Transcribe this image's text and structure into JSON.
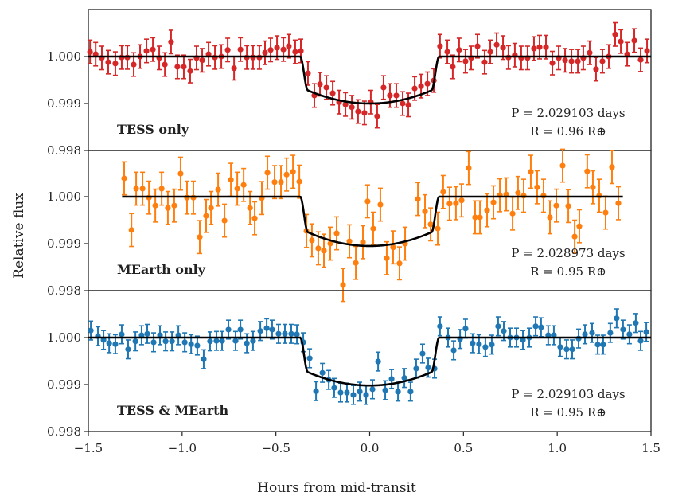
{
  "chart_data": {
    "type": "scatter",
    "title": "",
    "xlabel": "Hours from mid-transit",
    "ylabel": "Relative flux",
    "xlim": [
      -1.5,
      1.5
    ],
    "x_ticks": [
      "-1.5",
      "-1.0",
      "-0.5",
      "0.0",
      "0.5",
      "1.0",
      "1.5"
    ],
    "x_tick_values": [
      -1.5,
      -1.0,
      -0.5,
      0.0,
      0.5,
      1.0,
      1.5
    ],
    "grid": false,
    "panels": [
      {
        "label": "TESS only",
        "color": "#d62728",
        "ylim": [
          0.998,
          1.001
        ],
        "y_ticks": [
          "1.000",
          "0.999",
          "0.998"
        ],
        "y_tick_values": [
          1.0,
          0.999,
          0.998
        ],
        "annotation_period": "P = 2.029103 days",
        "annotation_radius": "R = 0.96 R⊕",
        "period_days": 2.029103,
        "radius_earth": 0.96,
        "error": 0.00025,
        "model": {
          "depth": 0.001,
          "t_contact_outer": 0.37,
          "t_contact_inner": 0.33,
          "x_range": [
            -1.5,
            1.5
          ]
        },
        "points": [
          [
            -1.491,
            1.0001
          ],
          [
            -1.461,
            1.00005
          ],
          [
            -1.428,
            0.99997
          ],
          [
            -1.394,
            0.99988
          ],
          [
            -1.356,
            0.99985
          ],
          [
            -1.322,
            0.99998
          ],
          [
            -1.292,
            0.99998
          ],
          [
            -1.258,
            0.99983
          ],
          [
            -1.224,
            1.0
          ],
          [
            -1.19,
            1.00012
          ],
          [
            -1.156,
            1.00015
          ],
          [
            -1.122,
            0.99997
          ],
          [
            -1.092,
            0.99983
          ],
          [
            -1.059,
            1.00031
          ],
          [
            -1.025,
            0.99978
          ],
          [
            -0.991,
            0.99978
          ],
          [
            -0.957,
            0.99969
          ],
          [
            -0.923,
            0.99997
          ],
          [
            -0.893,
            0.99992
          ],
          [
            -0.859,
            1.00005
          ],
          [
            -0.825,
            0.99998
          ],
          [
            -0.791,
            1.0
          ],
          [
            -0.757,
            1.00014
          ],
          [
            -0.723,
            0.99975
          ],
          [
            -0.689,
            1.00015
          ],
          [
            -0.655,
            0.99998
          ],
          [
            -0.622,
            0.99998
          ],
          [
            -0.588,
            0.99998
          ],
          [
            -0.558,
            1.00008
          ],
          [
            -0.528,
            1.00014
          ],
          [
            -0.494,
            1.00019
          ],
          [
            -0.46,
            1.00015
          ],
          [
            -0.431,
            1.00022
          ],
          [
            -0.397,
            1.0001
          ],
          [
            -0.367,
            1.00012
          ],
          [
            -0.329,
            0.99964
          ],
          [
            -0.295,
            0.99917
          ],
          [
            -0.265,
            0.99941
          ],
          [
            -0.231,
            0.99934
          ],
          [
            -0.197,
            0.99922
          ],
          [
            -0.163,
            0.99903
          ],
          [
            -0.129,
            0.99898
          ],
          [
            -0.095,
            0.99892
          ],
          [
            -0.062,
            0.99883
          ],
          [
            -0.028,
            0.9988
          ],
          [
            0.006,
            0.99903
          ],
          [
            0.04,
            0.99873
          ],
          [
            0.074,
            0.99934
          ],
          [
            0.108,
            0.99917
          ],
          [
            0.142,
            0.99917
          ],
          [
            0.176,
            0.999
          ],
          [
            0.206,
            0.99897
          ],
          [
            0.24,
            0.99932
          ],
          [
            0.274,
            0.99937
          ],
          [
            0.308,
            0.99942
          ],
          [
            0.342,
            0.99949
          ],
          [
            0.375,
            1.00022
          ],
          [
            0.414,
            1.0001
          ],
          [
            0.443,
            0.99978
          ],
          [
            0.477,
            1.00014
          ],
          [
            0.511,
            0.9999
          ],
          [
            0.541,
            0.99997
          ],
          [
            0.575,
            1.00022
          ],
          [
            0.613,
            0.99988
          ],
          [
            0.643,
            1.0001
          ],
          [
            0.677,
            1.00025
          ],
          [
            0.711,
            1.00019
          ],
          [
            0.74,
            0.99998
          ],
          [
            0.774,
            1.00003
          ],
          [
            0.808,
            0.99997
          ],
          [
            0.842,
            0.99997
          ],
          [
            0.876,
            1.00017
          ],
          [
            0.906,
            1.0002
          ],
          [
            0.94,
            1.0002
          ],
          [
            0.974,
            0.99986
          ],
          [
            1.008,
            0.99997
          ],
          [
            1.042,
            0.99992
          ],
          [
            1.076,
            0.9999
          ],
          [
            1.11,
            0.9999
          ],
          [
            1.139,
            0.99997
          ],
          [
            1.173,
            1.00008
          ],
          [
            1.207,
            0.99973
          ],
          [
            1.241,
            0.9999
          ],
          [
            1.275,
            1.0
          ],
          [
            1.309,
            1.00047
          ],
          [
            1.339,
            1.00032
          ],
          [
            1.373,
            1.00005
          ],
          [
            1.411,
            1.00034
          ],
          [
            1.445,
            0.99993
          ],
          [
            1.479,
            1.00012
          ]
        ]
      },
      {
        "label": "MEarth only",
        "color": "#ff7f0e",
        "ylim": [
          0.998,
          1.001
        ],
        "y_ticks": [
          "1.000",
          "0.999",
          "0.998"
        ],
        "y_tick_values": [
          1.0,
          0.999,
          0.998
        ],
        "annotation_period": "P = 2.028973 days",
        "annotation_radius": "R = 0.95 R⊕",
        "period_days": 2.028973,
        "radius_earth": 0.95,
        "error": 0.00035,
        "model": {
          "depth": 0.00105,
          "t_contact_outer": 0.37,
          "t_contact_inner": 0.33,
          "x_range": [
            -1.32,
            1.35
          ]
        },
        "points": [
          [
            -1.309,
            1.00039
          ],
          [
            -1.27,
            0.99929
          ],
          [
            -1.245,
            1.00017
          ],
          [
            -1.211,
            1.00017
          ],
          [
            -1.177,
            0.99998
          ],
          [
            -1.143,
            0.99981
          ],
          [
            -1.109,
            1.00017
          ],
          [
            -1.076,
            0.99976
          ],
          [
            -1.042,
            0.99981
          ],
          [
            -1.008,
            1.00049
          ],
          [
            -0.974,
            0.99998
          ],
          [
            -0.94,
            0.99998
          ],
          [
            -0.906,
            0.99914
          ],
          [
            -0.872,
            0.99959
          ],
          [
            -0.846,
            0.99976
          ],
          [
            -0.808,
            1.00015
          ],
          [
            -0.774,
            0.99949
          ],
          [
            -0.74,
            1.00036
          ],
          [
            -0.706,
            1.00017
          ],
          [
            -0.672,
            1.00025
          ],
          [
            -0.638,
            0.99976
          ],
          [
            -0.613,
            0.99954
          ],
          [
            -0.575,
            0.99997
          ],
          [
            -0.545,
            1.00051
          ],
          [
            -0.507,
            1.00031
          ],
          [
            -0.473,
            1.00031
          ],
          [
            -0.443,
            1.00047
          ],
          [
            -0.409,
            1.00053
          ],
          [
            -0.375,
            1.00032
          ],
          [
            -0.337,
            0.99927
          ],
          [
            -0.308,
            0.99907
          ],
          [
            -0.274,
            0.9989
          ],
          [
            -0.244,
            0.99885
          ],
          [
            -0.21,
            0.999
          ],
          [
            -0.176,
            0.99922
          ],
          [
            -0.142,
            0.99812
          ],
          [
            -0.108,
            0.99905
          ],
          [
            -0.074,
            0.99859
          ],
          [
            -0.036,
            0.99903
          ],
          [
            -0.011,
            0.9999
          ],
          [
            0.019,
            0.99932
          ],
          [
            0.057,
            0.99983
          ],
          [
            0.091,
            0.99869
          ],
          [
            0.125,
            0.99892
          ],
          [
            0.159,
            0.99858
          ],
          [
            0.189,
            0.999
          ],
          [
            0.257,
            0.99995
          ],
          [
            0.295,
            0.99969
          ],
          [
            0.325,
            0.99941
          ],
          [
            0.363,
            0.99932
          ],
          [
            0.392,
            1.0001
          ],
          [
            0.426,
            0.99985
          ],
          [
            0.46,
            0.99986
          ],
          [
            0.49,
            0.99992
          ],
          [
            0.528,
            1.00061
          ],
          [
            0.562,
            0.99956
          ],
          [
            0.588,
            0.99956
          ],
          [
            0.626,
            0.99971
          ],
          [
            0.66,
            0.99988
          ],
          [
            0.694,
            1.00003
          ],
          [
            0.728,
            1.00005
          ],
          [
            0.762,
            0.99964
          ],
          [
            0.791,
            1.00008
          ],
          [
            0.821,
            1.00002
          ],
          [
            0.859,
            1.00053
          ],
          [
            0.893,
            1.0002
          ],
          [
            0.927,
            1.00002
          ],
          [
            0.961,
            0.99956
          ],
          [
            0.995,
            0.99981
          ],
          [
            1.029,
            1.00066
          ],
          [
            1.059,
            0.9998
          ],
          [
            1.093,
            0.99915
          ],
          [
            1.118,
            0.99937
          ],
          [
            1.16,
            1.00054
          ],
          [
            1.19,
            1.0002
          ],
          [
            1.224,
            1.00002
          ],
          [
            1.258,
            0.99966
          ],
          [
            1.292,
            1.00063
          ],
          [
            1.326,
            0.99986
          ]
        ]
      },
      {
        "label": "TESS & MEarth",
        "color": "#1f77b4",
        "ylim": [
          0.998,
          1.001
        ],
        "y_ticks": [
          "1.000",
          "0.999",
          "0.998"
        ],
        "y_tick_values": [
          1.0,
          0.999,
          0.998
        ],
        "annotation_period": "P = 2.029103 days",
        "annotation_radius": "R = 0.95 R⊕",
        "period_days": 2.029103,
        "radius_earth": 0.95,
        "error": 0.0002,
        "model": {
          "depth": 0.00102,
          "t_contact_outer": 0.37,
          "t_contact_inner": 0.33,
          "x_range": [
            -1.5,
            1.5
          ]
        },
        "points": [
          [
            -1.487,
            1.00015
          ],
          [
            -1.449,
            1.00003
          ],
          [
            -1.419,
            0.99995
          ],
          [
            -1.389,
            0.99988
          ],
          [
            -1.356,
            0.99986
          ],
          [
            -1.322,
            1.00007
          ],
          [
            -1.288,
            0.99975
          ],
          [
            -1.249,
            0.99992
          ],
          [
            -1.216,
            1.00005
          ],
          [
            -1.186,
            1.00008
          ],
          [
            -1.152,
            0.9999
          ],
          [
            -1.118,
            1.00005
          ],
          [
            -1.088,
            0.99992
          ],
          [
            -1.054,
            0.99992
          ],
          [
            -1.02,
            1.00005
          ],
          [
            -0.986,
            0.9999
          ],
          [
            -0.952,
            0.99986
          ],
          [
            -0.919,
            0.99983
          ],
          [
            -0.885,
            0.99954
          ],
          [
            -0.851,
            0.99992
          ],
          [
            -0.817,
            0.99993
          ],
          [
            -0.787,
            0.99993
          ],
          [
            -0.753,
            1.00017
          ],
          [
            -0.715,
            0.99993
          ],
          [
            -0.689,
            1.00017
          ],
          [
            -0.655,
            0.99988
          ],
          [
            -0.622,
            0.99993
          ],
          [
            -0.583,
            1.00014
          ],
          [
            -0.549,
            1.0002
          ],
          [
            -0.52,
            1.00017
          ],
          [
            -0.486,
            1.00008
          ],
          [
            -0.452,
            1.00008
          ],
          [
            -0.418,
            1.00008
          ],
          [
            -0.388,
            1.00007
          ],
          [
            -0.354,
            0.9999
          ],
          [
            -0.32,
            0.99956
          ],
          [
            -0.286,
            0.99886
          ],
          [
            -0.252,
            0.99925
          ],
          [
            -0.218,
            0.9991
          ],
          [
            -0.189,
            0.99893
          ],
          [
            -0.155,
            0.99883
          ],
          [
            -0.121,
            0.99883
          ],
          [
            -0.087,
            0.99878
          ],
          [
            -0.053,
            0.99885
          ],
          [
            -0.019,
            0.99878
          ],
          [
            0.015,
            0.9989
          ],
          [
            0.045,
            0.99949
          ],
          [
            0.083,
            0.99888
          ],
          [
            0.117,
            0.99912
          ],
          [
            0.151,
            0.99885
          ],
          [
            0.185,
            0.99914
          ],
          [
            0.218,
            0.99885
          ],
          [
            0.248,
            0.99934
          ],
          [
            0.282,
            0.99966
          ],
          [
            0.312,
            0.99936
          ],
          [
            0.346,
            0.99934
          ],
          [
            0.375,
            1.00024
          ],
          [
            0.418,
            1.0
          ],
          [
            0.448,
            0.99973
          ],
          [
            0.482,
            0.99997
          ],
          [
            0.511,
            1.00019
          ],
          [
            0.549,
            0.99988
          ],
          [
            0.583,
            0.99986
          ],
          [
            0.617,
            0.9998
          ],
          [
            0.651,
            0.99985
          ],
          [
            0.685,
            1.00024
          ],
          [
            0.715,
            1.00014
          ],
          [
            0.749,
            1.0
          ],
          [
            0.783,
            1.0
          ],
          [
            0.817,
            0.99995
          ],
          [
            0.851,
            1.0
          ],
          [
            0.885,
            1.00024
          ],
          [
            0.914,
            1.00022
          ],
          [
            0.952,
            1.00005
          ],
          [
            0.982,
            1.00005
          ],
          [
            1.016,
            0.9998
          ],
          [
            1.05,
            0.99975
          ],
          [
            1.08,
            0.99975
          ],
          [
            1.114,
            0.99998
          ],
          [
            1.148,
            1.00007
          ],
          [
            1.186,
            1.0001
          ],
          [
            1.216,
            0.99985
          ],
          [
            1.245,
            0.99985
          ],
          [
            1.283,
            1.0001
          ],
          [
            1.317,
            1.00041
          ],
          [
            1.351,
            1.00017
          ],
          [
            1.385,
            1.00007
          ],
          [
            1.419,
            1.00031
          ],
          [
            1.445,
            0.99993
          ],
          [
            1.475,
            1.00012
          ]
        ]
      }
    ]
  }
}
